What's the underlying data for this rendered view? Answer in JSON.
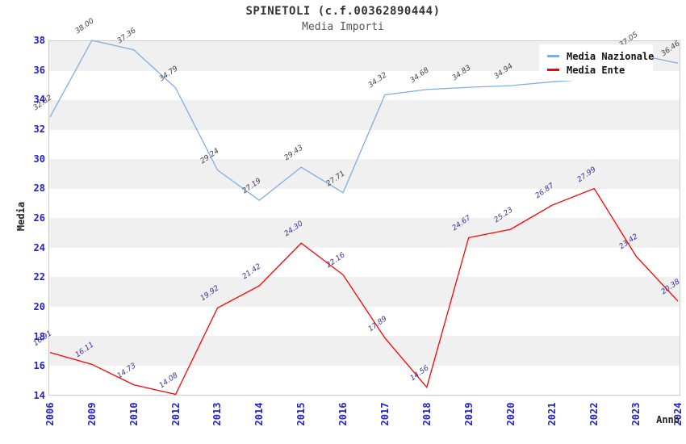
{
  "chart_data": {
    "type": "line",
    "title": "SPINETOLI (c.f.00362890444)",
    "subtitle": "Media Importi",
    "xlabel": "Anno",
    "ylabel": "Media",
    "ylim": [
      14,
      38
    ],
    "ytick_step": 2,
    "yticks": [
      14,
      16,
      18,
      20,
      22,
      24,
      26,
      28,
      30,
      32,
      34,
      36,
      38
    ],
    "categories": [
      "2006",
      "2009",
      "2010",
      "2012",
      "2013",
      "2014",
      "2015",
      "2016",
      "2017",
      "2018",
      "2019",
      "2020",
      "2021",
      "2022",
      "2023",
      "2024"
    ],
    "series": [
      {
        "name": "Media Nazionale",
        "color": "#7FAEE1",
        "label_color": "#404040",
        "values": [
          32.82,
          38.0,
          37.36,
          34.79,
          29.24,
          27.19,
          29.43,
          27.71,
          34.32,
          34.68,
          34.83,
          34.94,
          35.2,
          35.4,
          37.05,
          36.46
        ],
        "labels": [
          "32.82",
          "38.00",
          "37.36",
          "34.79",
          "29.24",
          "27.19",
          "29.43",
          "27.71",
          "34.32",
          "34.68",
          "34.83",
          "34.94",
          "",
          "",
          "37.05",
          "36.46"
        ],
        "note": "2021 and 2022 labels hidden behind legend box; values estimated from line position"
      },
      {
        "name": "Media Ente",
        "color": "#FF0000",
        "label_color": "#333399",
        "values": [
          16.91,
          16.11,
          14.73,
          14.08,
          19.92,
          21.42,
          24.3,
          22.16,
          17.89,
          14.56,
          24.67,
          25.23,
          26.87,
          27.99,
          23.42,
          20.38
        ],
        "labels": [
          "16.91",
          "16.11",
          "14.73",
          "14.08",
          "19.92",
          "21.42",
          "24.30",
          "22.16",
          "17.89",
          "14.56",
          "24.67",
          "25.23",
          "26.87",
          "27.99",
          "23.42",
          "20.38"
        ]
      }
    ],
    "legend": {
      "position": "top-right",
      "entries": [
        "Media Nazionale",
        "Media Ente"
      ]
    },
    "grid": "alternating-horizontal-bands",
    "band_colors": [
      "#FFFFFF",
      "#F0F0F0"
    ],
    "axis_tick_color": "#2222CC",
    "plot_border_color": "#CCCCCC"
  }
}
